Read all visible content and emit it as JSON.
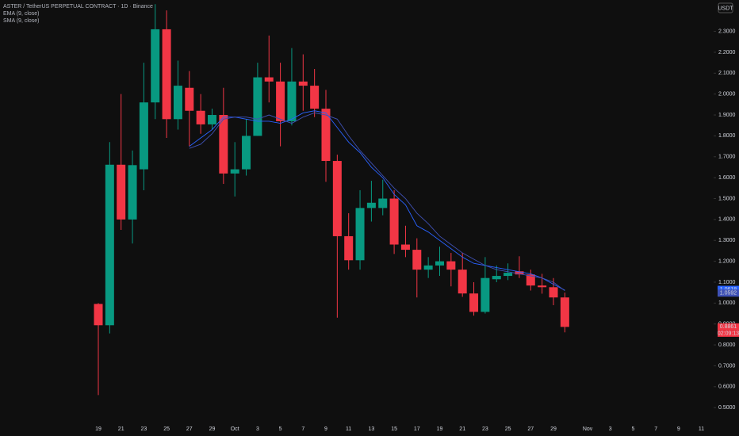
{
  "chart_data": {
    "type": "candlestick",
    "title": "ASTER / TetherUS PERPETUAL CONTRACT · 1D · Binance",
    "currency": "USDT",
    "countdown": "02:09:13",
    "categories": [
      "19",
      null,
      "21",
      null,
      "23",
      null,
      "25",
      null,
      "27",
      null,
      "29",
      null,
      "Oct",
      null,
      "3",
      null,
      "5",
      null,
      "7",
      null,
      "9",
      null,
      "11",
      null,
      "13",
      null,
      "15",
      null,
      "17",
      null,
      "19",
      null,
      "21",
      null,
      "23",
      null,
      "25",
      null,
      "27",
      null,
      "29",
      null,
      null,
      "Nov",
      null,
      "3",
      null,
      "5",
      null,
      "7",
      null,
      "9",
      null,
      "11"
    ],
    "open": [
      0.996,
      0.894,
      1.662,
      1.4,
      1.64,
      1.96,
      2.31,
      1.88,
      2.03,
      1.92,
      1.855,
      1.9,
      1.62,
      1.64,
      1.8,
      2.08,
      2.06,
      1.87,
      2.06,
      2.04,
      1.93,
      1.68,
      1.32,
      1.205,
      1.455,
      1.455,
      1.5,
      1.28,
      1.255,
      1.16,
      1.18,
      1.2,
      1.16,
      1.046,
      0.958,
      1.114,
      1.13,
      1.152,
      1.137,
      1.084,
      1.076,
      1.027,
      null,
      null,
      null,
      null,
      null,
      null,
      null,
      null,
      null,
      null,
      null,
      null
    ],
    "high": [
      1.0,
      1.77,
      2.0,
      1.73,
      2.15,
      2.43,
      2.4,
      2.16,
      2.11,
      2.0,
      1.93,
      2.03,
      1.77,
      1.88,
      2.15,
      2.28,
      2.15,
      2.22,
      2.19,
      2.12,
      2.02,
      1.71,
      1.43,
      1.54,
      1.585,
      1.59,
      1.54,
      1.37,
      1.31,
      1.22,
      1.27,
      1.24,
      1.24,
      1.1,
      1.22,
      1.18,
      1.19,
      1.224,
      1.16,
      1.14,
      1.12,
      1.05,
      null,
      null,
      null,
      null,
      null,
      null,
      null,
      null,
      null,
      null,
      null,
      null
    ],
    "low": [
      0.56,
      0.855,
      1.35,
      1.285,
      1.54,
      1.88,
      1.79,
      1.83,
      1.75,
      1.81,
      1.83,
      1.57,
      1.51,
      1.61,
      1.8,
      1.96,
      1.75,
      1.85,
      1.92,
      1.89,
      1.58,
      0.93,
      1.16,
      1.16,
      1.39,
      1.42,
      1.235,
      1.22,
      1.027,
      1.12,
      1.13,
      1.08,
      1.03,
      0.94,
      0.95,
      1.1,
      1.11,
      1.12,
      1.06,
      1.045,
      0.99,
      0.86,
      null,
      null,
      null,
      null,
      null,
      null,
      null,
      null,
      null,
      null,
      null,
      null
    ],
    "close": [
      0.894,
      1.662,
      1.4,
      1.66,
      1.96,
      2.31,
      1.88,
      2.04,
      1.92,
      1.855,
      1.9,
      1.62,
      1.64,
      1.8,
      2.08,
      2.06,
      1.87,
      2.06,
      2.04,
      1.93,
      1.68,
      1.32,
      1.205,
      1.455,
      1.48,
      1.5,
      1.28,
      1.255,
      1.16,
      1.18,
      1.2,
      1.16,
      1.046,
      0.958,
      1.12,
      1.13,
      1.145,
      1.137,
      1.084,
      1.076,
      1.027,
      0.8861,
      null,
      null,
      null,
      null,
      null,
      null,
      null,
      null,
      null,
      null,
      null,
      null
    ],
    "up_color": "#089981",
    "down_color": "#f23645",
    "indicators": [
      {
        "name": "EMA (9, close)",
        "color": "#2962ff",
        "values": [
          null,
          null,
          null,
          null,
          null,
          null,
          null,
          null,
          1.75,
          1.79,
          1.83,
          1.89,
          1.89,
          1.88,
          1.87,
          1.87,
          1.86,
          1.88,
          1.91,
          1.92,
          1.91,
          1.84,
          1.77,
          1.72,
          1.65,
          1.6,
          1.52,
          1.47,
          1.37,
          1.34,
          1.3,
          1.26,
          1.22,
          1.19,
          1.18,
          1.17,
          1.16,
          1.15,
          1.14,
          1.12,
          1.09,
          1.0618,
          null,
          null,
          null,
          null,
          null,
          null,
          null,
          null,
          null,
          null,
          null,
          null
        ]
      },
      {
        "name": "SMA (9, close)",
        "color": "#3f51b5",
        "values": [
          null,
          null,
          null,
          null,
          null,
          null,
          null,
          null,
          1.74,
          1.76,
          1.81,
          1.88,
          1.89,
          1.89,
          1.88,
          1.9,
          1.88,
          1.86,
          1.89,
          1.91,
          1.9,
          1.88,
          1.8,
          1.73,
          1.67,
          1.61,
          1.55,
          1.5,
          1.43,
          1.38,
          1.32,
          1.28,
          1.24,
          1.21,
          1.18,
          1.16,
          1.15,
          1.14,
          1.13,
          1.12,
          1.1,
          1.0592,
          null,
          null,
          null,
          null,
          null,
          null,
          null,
          null,
          null,
          null,
          null,
          null
        ]
      }
    ],
    "ylim": [
      0.44,
      2.45
    ],
    "yticks": [
      {
        "value": 0.5,
        "label": "0.5000"
      },
      {
        "value": 0.6,
        "label": "0.6000"
      },
      {
        "value": 0.7,
        "label": "0.7000"
      },
      {
        "value": 0.8,
        "label": "0.8000"
      },
      {
        "value": 0.9,
        "label": "0.9000"
      },
      {
        "value": 1.0,
        "label": "1.0000"
      },
      {
        "value": 1.1,
        "label": "1.1000"
      },
      {
        "value": 1.2,
        "label": "1.2000"
      },
      {
        "value": 1.3,
        "label": "1.3000"
      },
      {
        "value": 1.4,
        "label": "1.4000"
      },
      {
        "value": 1.5,
        "label": "1.5000"
      },
      {
        "value": 1.6,
        "label": "1.6000"
      },
      {
        "value": 1.7,
        "label": "1.7000"
      },
      {
        "value": 1.8,
        "label": "1.8000"
      },
      {
        "value": 1.9,
        "label": "1.9000"
      },
      {
        "value": 2.0,
        "label": "2.0000"
      },
      {
        "value": 2.1,
        "label": "2.1000"
      },
      {
        "value": 2.2,
        "label": "2.2000"
      },
      {
        "value": 2.3,
        "label": "2.3000"
      }
    ],
    "grid": false
  }
}
